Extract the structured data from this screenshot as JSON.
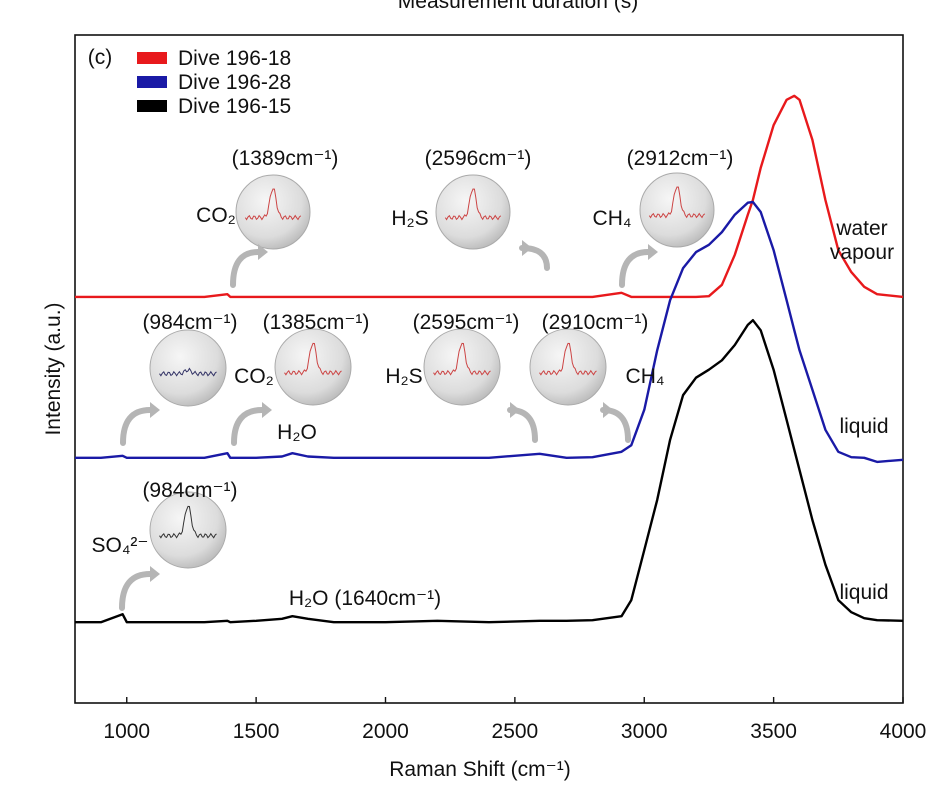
{
  "chart_data": {
    "type": "line",
    "top_text": "Measurement duration (s)",
    "x_label": "Raman Shift (cm⁻¹)",
    "y_label": "Intensity (a.u.)",
    "xlim": [
      800,
      4000
    ],
    "xticks": [
      1000,
      1500,
      2000,
      2500,
      3000,
      3500,
      4000
    ],
    "ylim": [
      0,
      100
    ],
    "x": [
      800,
      900,
      984,
      1000,
      1100,
      1200,
      1300,
      1389,
      1400,
      1500,
      1600,
      1640,
      1700,
      1800,
      1900,
      2000,
      2200,
      2400,
      2596,
      2700,
      2800,
      2912,
      2950,
      3000,
      3050,
      3100,
      3150,
      3200,
      3250,
      3300,
      3350,
      3400,
      3420,
      3450,
      3500,
      3550,
      3580,
      3600,
      3650,
      3700,
      3750,
      3800,
      3850,
      3900,
      4000
    ],
    "series": [
      {
        "name": "Dive 196-18",
        "color": "#e8191c",
        "values": [
          60.8,
          60.8,
          60.8,
          60.8,
          60.8,
          60.8,
          60.8,
          61.2,
          60.8,
          60.8,
          60.8,
          60.8,
          60.8,
          60.8,
          60.8,
          60.8,
          60.8,
          60.8,
          60.8,
          60.8,
          60.8,
          61.4,
          60.8,
          60.8,
          60.8,
          60.8,
          60.8,
          60.8,
          60.9,
          62.6,
          67.1,
          73.1,
          75.3,
          80.1,
          86.5,
          90.3,
          90.9,
          90.3,
          84.3,
          75.3,
          67.8,
          64.5,
          62.3,
          61.2,
          60.8
        ]
      },
      {
        "name": "Dive 196-28",
        "color": "#1a1aa6",
        "values": [
          36.7,
          36.7,
          37.0,
          36.7,
          36.7,
          36.7,
          36.7,
          37.4,
          36.7,
          36.7,
          36.9,
          37.4,
          36.9,
          36.7,
          36.7,
          36.7,
          36.7,
          36.7,
          37.3,
          36.7,
          36.8,
          37.6,
          38.6,
          43.9,
          52.8,
          60.3,
          65.1,
          67.5,
          68.6,
          70.5,
          73.1,
          74.9,
          75.0,
          73.5,
          67.8,
          60.3,
          55.8,
          52.8,
          46.9,
          40.9,
          37.6,
          36.8,
          36.7,
          36.1,
          36.4
        ]
      },
      {
        "name": "Dive 196-15",
        "color": "#000000",
        "values": [
          12.1,
          12.1,
          13.3,
          12.1,
          12.1,
          12.1,
          12.1,
          12.3,
          12.1,
          12.3,
          12.6,
          13.0,
          12.6,
          12.1,
          12.1,
          12.1,
          12.3,
          12.1,
          12.3,
          12.3,
          12.4,
          13.0,
          15.4,
          22.9,
          30.4,
          39.4,
          46.1,
          48.7,
          49.9,
          51.3,
          53.6,
          56.6,
          57.3,
          55.8,
          49.9,
          42.4,
          37.9,
          34.9,
          27.4,
          20.7,
          15.4,
          13.6,
          12.7,
          12.4,
          12.3
        ]
      }
    ],
    "annotations": [
      "(c)",
      "(1389cm⁻¹)",
      "(2596cm⁻¹)",
      "(2912cm⁻¹)",
      "CO₂",
      "H₂S",
      "CH₄",
      "water",
      "vapour",
      "(984cm⁻¹)",
      "(1385cm⁻¹)",
      "(2595cm⁻¹)",
      "(2910cm⁻¹)",
      "CO₂",
      "H₂S",
      "CH₄",
      "H₂O",
      "liquid",
      "(984cm⁻¹)",
      "SO₄²⁻",
      "H₂O (1640cm⁻¹)",
      "liquid"
    ]
  }
}
